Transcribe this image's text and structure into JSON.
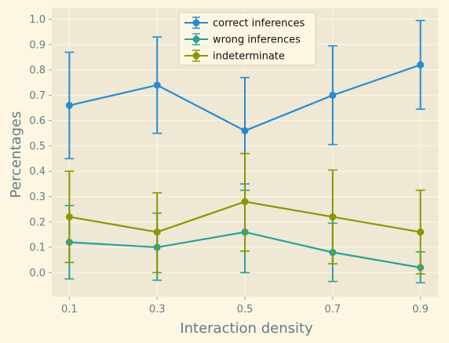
{
  "chart_data": {
    "type": "line",
    "x": [
      0.1,
      0.3,
      0.5,
      0.7,
      0.9
    ],
    "xticks": [
      "0.1",
      "0.3",
      "0.5",
      "0.7",
      "0.9"
    ],
    "yticks": [
      "0.0",
      "0.1",
      "0.2",
      "0.3",
      "0.4",
      "0.5",
      "0.6",
      "0.7",
      "0.8",
      "0.9",
      "1.0"
    ],
    "xlabel": "Interaction density",
    "ylabel": "Percentages",
    "xlim": [
      0.06,
      0.94
    ],
    "ylim": [
      -0.095,
      1.045
    ],
    "grid": true,
    "legend_position": "top-center",
    "background": "#eee8d5",
    "figure_background": "#fdf6e3",
    "series": [
      {
        "name": "correct inferences",
        "color": "#268bd2",
        "values": [
          0.66,
          0.74,
          0.56,
          0.7,
          0.82
        ],
        "err_low": [
          0.45,
          0.55,
          0.35,
          0.505,
          0.645
        ],
        "err_high": [
          0.87,
          0.93,
          0.77,
          0.895,
          0.995
        ]
      },
      {
        "name": "wrong inferences",
        "color": "#2aa198",
        "values": [
          0.12,
          0.1,
          0.16,
          0.08,
          0.02
        ],
        "err_low": [
          -0.025,
          -0.03,
          0.0,
          -0.035,
          -0.04
        ],
        "err_high": [
          0.265,
          0.235,
          0.325,
          0.195,
          0.082
        ]
      },
      {
        "name": "indeterminate",
        "color": "#859900",
        "values": [
          0.22,
          0.16,
          0.28,
          0.22,
          0.16
        ],
        "err_low": [
          0.04,
          0.0,
          0.085,
          0.035,
          -0.005
        ],
        "err_high": [
          0.4,
          0.315,
          0.47,
          0.405,
          0.325
        ]
      }
    ]
  }
}
